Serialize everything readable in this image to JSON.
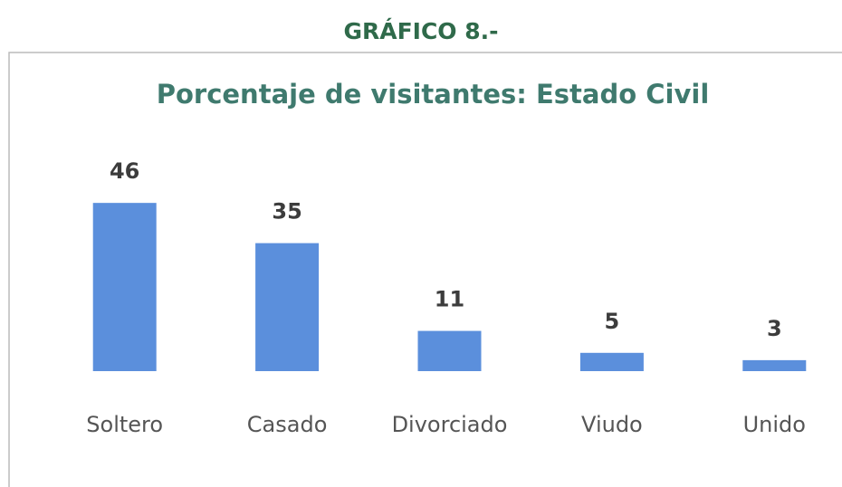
{
  "header": "GRÁFICO 8.-",
  "chart_data": {
    "type": "bar",
    "title": "Porcentaje de visitantes: Estado Civil",
    "categories": [
      "Soltero",
      "Casado",
      "Divorciado",
      "Viudo",
      "Unido"
    ],
    "values": [
      46,
      35,
      11,
      5,
      3
    ],
    "color": "#5b8fdc",
    "ylim": [
      0,
      50
    ]
  }
}
